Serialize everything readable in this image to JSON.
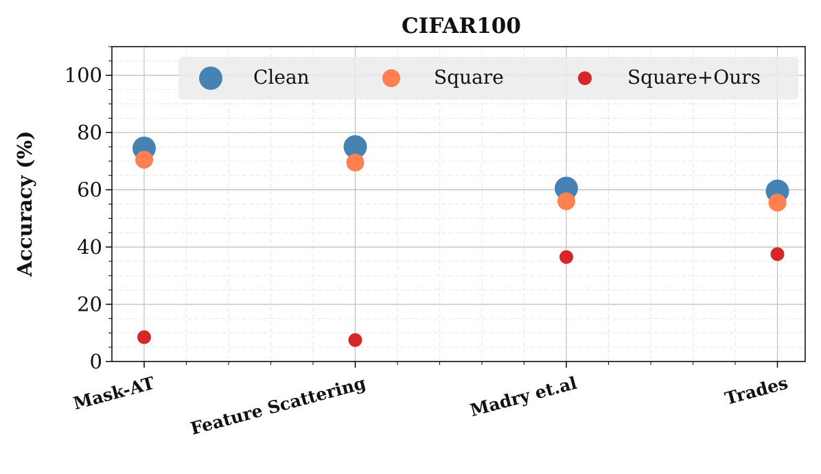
{
  "chart_data": {
    "type": "scatter",
    "title": "CIFAR100",
    "y_label": "Accuracy (%)",
    "categories": [
      "Mask-AT",
      "Feature Scattering",
      "Madry et.al",
      "Trades"
    ],
    "series": [
      {
        "name": "Clean",
        "color": "#4682b4",
        "values": [
          74.5,
          75,
          60.5,
          59.5
        ]
      },
      {
        "name": "Square",
        "color": "#ff8050",
        "values": [
          70.5,
          69.5,
          56,
          55.5
        ]
      },
      {
        "name": "Square+Ours",
        "color": "#d62728",
        "values": [
          8.5,
          7.5,
          36.5,
          37.5
        ]
      }
    ],
    "ylim": [
      0,
      110
    ],
    "yticks": [
      0,
      20,
      40,
      60,
      80,
      100
    ],
    "grid": true,
    "legend": "upper center"
  }
}
